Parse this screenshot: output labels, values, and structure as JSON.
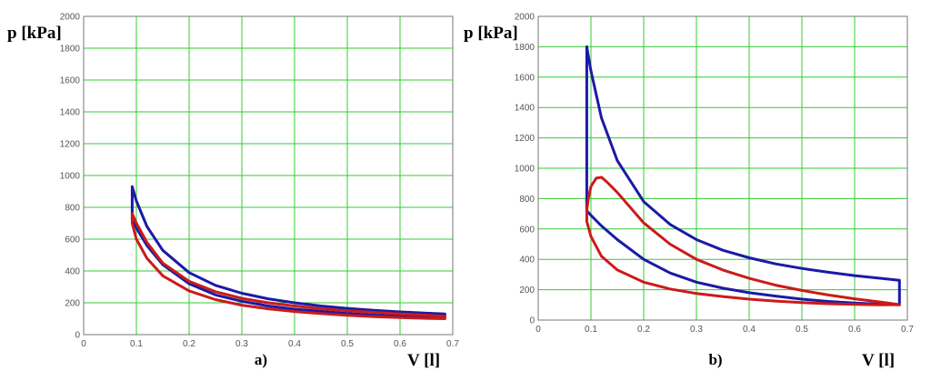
{
  "chart_data": [
    {
      "type": "line",
      "panel_label": "a)",
      "xlabel": "V [l]",
      "ylabel": "p [kPa]",
      "xlim": [
        0,
        0.7
      ],
      "ylim": [
        0,
        2000
      ],
      "x_ticks": [
        "0",
        "0.1",
        "0.2",
        "0.3",
        "0.4",
        "0.5",
        "0.6",
        "0.7"
      ],
      "y_ticks": [
        "0",
        "200",
        "400",
        "600",
        "800",
        "1000",
        "1200",
        "1400",
        "1600",
        "1800",
        "2000"
      ],
      "grid": true,
      "series": [
        {
          "color": "#1a1aa6",
          "points": [
            [
              0.092,
              930
            ],
            [
              0.1,
              840
            ],
            [
              0.12,
              680
            ],
            [
              0.15,
              530
            ],
            [
              0.2,
              390
            ],
            [
              0.25,
              310
            ],
            [
              0.3,
              260
            ],
            [
              0.35,
              225
            ],
            [
              0.4,
              200
            ],
            [
              0.45,
              180
            ],
            [
              0.5,
              165
            ],
            [
              0.55,
              153
            ],
            [
              0.6,
              143
            ],
            [
              0.65,
              135
            ],
            [
              0.685,
              130
            ],
            [
              0.685,
              105
            ],
            [
              0.65,
              108
            ],
            [
              0.6,
              115
            ],
            [
              0.55,
              123
            ],
            [
              0.5,
              133
            ],
            [
              0.45,
              146
            ],
            [
              0.4,
              160
            ],
            [
              0.35,
              180
            ],
            [
              0.3,
              210
            ],
            [
              0.25,
              250
            ],
            [
              0.2,
              320
            ],
            [
              0.15,
              440
            ],
            [
              0.12,
              560
            ],
            [
              0.1,
              670
            ],
            [
              0.092,
              730
            ],
            [
              0.092,
              930
            ]
          ]
        },
        {
          "color": "#cc1a1a",
          "points": [
            [
              0.092,
              760
            ],
            [
              0.1,
              700
            ],
            [
              0.12,
              580
            ],
            [
              0.15,
              450
            ],
            [
              0.2,
              335
            ],
            [
              0.25,
              270
            ],
            [
              0.3,
              228
            ],
            [
              0.35,
              200
            ],
            [
              0.4,
              180
            ],
            [
              0.45,
              163
            ],
            [
              0.5,
              150
            ],
            [
              0.55,
              140
            ],
            [
              0.6,
              130
            ],
            [
              0.65,
              122
            ],
            [
              0.685,
              115
            ],
            [
              0.685,
              100
            ],
            [
              0.65,
              102
            ],
            [
              0.6,
              107
            ],
            [
              0.55,
              113
            ],
            [
              0.5,
              121
            ],
            [
              0.45,
              132
            ],
            [
              0.4,
              145
            ],
            [
              0.35,
              162
            ],
            [
              0.3,
              185
            ],
            [
              0.25,
              220
            ],
            [
              0.2,
              275
            ],
            [
              0.15,
              370
            ],
            [
              0.12,
              480
            ],
            [
              0.1,
              600
            ],
            [
              0.092,
              700
            ],
            [
              0.092,
              760
            ]
          ]
        }
      ]
    },
    {
      "type": "line",
      "panel_label": "b)",
      "xlabel": "V [l]",
      "ylabel": "p [kPa]",
      "xlim": [
        0,
        0.7
      ],
      "ylim": [
        0,
        2000
      ],
      "x_ticks": [
        "0",
        "0.1",
        "0.2",
        "0.3",
        "0.4",
        "0.5",
        "0.6",
        "0.7"
      ],
      "y_ticks": [
        "0",
        "200",
        "400",
        "600",
        "800",
        "1000",
        "1200",
        "1400",
        "1600",
        "1800",
        "2000"
      ],
      "grid": true,
      "series": [
        {
          "color": "#1a1aa6",
          "points": [
            [
              0.092,
              1800
            ],
            [
              0.1,
              1640
            ],
            [
              0.12,
              1330
            ],
            [
              0.15,
              1050
            ],
            [
              0.2,
              780
            ],
            [
              0.25,
              630
            ],
            [
              0.3,
              530
            ],
            [
              0.35,
              460
            ],
            [
              0.4,
              410
            ],
            [
              0.45,
              370
            ],
            [
              0.5,
              340
            ],
            [
              0.55,
              315
            ],
            [
              0.6,
              293
            ],
            [
              0.65,
              275
            ],
            [
              0.685,
              262
            ],
            [
              0.685,
              100
            ],
            [
              0.65,
              104
            ],
            [
              0.6,
              112
            ],
            [
              0.55,
              123
            ],
            [
              0.5,
              138
            ],
            [
              0.45,
              158
            ],
            [
              0.4,
              180
            ],
            [
              0.35,
              210
            ],
            [
              0.3,
              250
            ],
            [
              0.25,
              310
            ],
            [
              0.2,
              400
            ],
            [
              0.15,
              530
            ],
            [
              0.12,
              620
            ],
            [
              0.1,
              690
            ],
            [
              0.092,
              720
            ],
            [
              0.092,
              1800
            ]
          ]
        },
        {
          "color": "#cc1a1a",
          "points": [
            [
              0.092,
              720
            ],
            [
              0.095,
              800
            ],
            [
              0.1,
              880
            ],
            [
              0.11,
              935
            ],
            [
              0.12,
              940
            ],
            [
              0.13,
              910
            ],
            [
              0.15,
              840
            ],
            [
              0.2,
              640
            ],
            [
              0.25,
              500
            ],
            [
              0.3,
              400
            ],
            [
              0.35,
              330
            ],
            [
              0.4,
              275
            ],
            [
              0.45,
              230
            ],
            [
              0.5,
              195
            ],
            [
              0.55,
              165
            ],
            [
              0.6,
              140
            ],
            [
              0.65,
              118
            ],
            [
              0.685,
              102
            ],
            [
              0.65,
              100
            ],
            [
              0.6,
              103
            ],
            [
              0.55,
              108
            ],
            [
              0.5,
              115
            ],
            [
              0.45,
              125
            ],
            [
              0.4,
              138
            ],
            [
              0.35,
              155
            ],
            [
              0.3,
              175
            ],
            [
              0.25,
              205
            ],
            [
              0.2,
              250
            ],
            [
              0.15,
              330
            ],
            [
              0.12,
              420
            ],
            [
              0.1,
              550
            ],
            [
              0.092,
              650
            ],
            [
              0.092,
              720
            ]
          ]
        }
      ]
    }
  ]
}
